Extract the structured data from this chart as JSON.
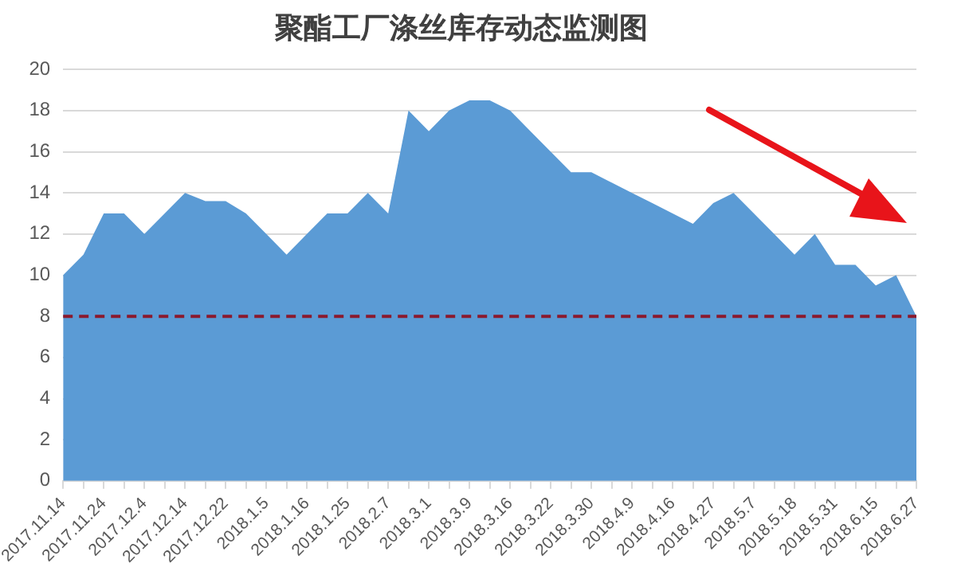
{
  "chart_data": {
    "type": "area",
    "title": "聚酯工厂涤丝库存动态监测图",
    "categories": [
      "2017.11.14",
      null,
      "2017.11.24",
      null,
      "2017.12.4",
      null,
      "2017.12.14",
      null,
      "2017.12.22",
      null,
      "2018.1.5",
      null,
      "2018.1.16",
      null,
      "2018.1.25",
      null,
      "2018.2.7",
      null,
      "2018.3.1",
      null,
      "2018.3.9",
      null,
      "2018.3.16",
      null,
      "2018.3.22",
      null,
      "2018.3.30",
      null,
      "2018.4.9",
      null,
      "2018.4.16",
      null,
      "2018.4.27",
      null,
      "2018.5.7",
      null,
      "2018.5.18",
      null,
      "2018.5.31",
      null,
      "2018.6.15",
      null,
      "2018.6.27"
    ],
    "series": [
      {
        "color": "#5b9bd5",
        "values": [
          10,
          11,
          13,
          13,
          12,
          13,
          14,
          13.6,
          13.6,
          13,
          12,
          11,
          12,
          13,
          13,
          14,
          13,
          18,
          17,
          18,
          18.5,
          18.5,
          18,
          17,
          16,
          15,
          15,
          14.5,
          14,
          13.5,
          13,
          12.5,
          13.5,
          14,
          13,
          12,
          11,
          12,
          10.5,
          10.5,
          9.5,
          10,
          8
        ]
      }
    ],
    "ylim": [
      0,
      20
    ],
    "yticks": [
      0,
      2,
      4,
      6,
      8,
      10,
      12,
      14,
      16,
      18,
      20
    ],
    "grid": "y",
    "legend": false,
    "ref_lines": [
      {
        "axis": "y",
        "value": 8,
        "color": "#8b1a2e",
        "line_style": "dashed"
      }
    ]
  }
}
